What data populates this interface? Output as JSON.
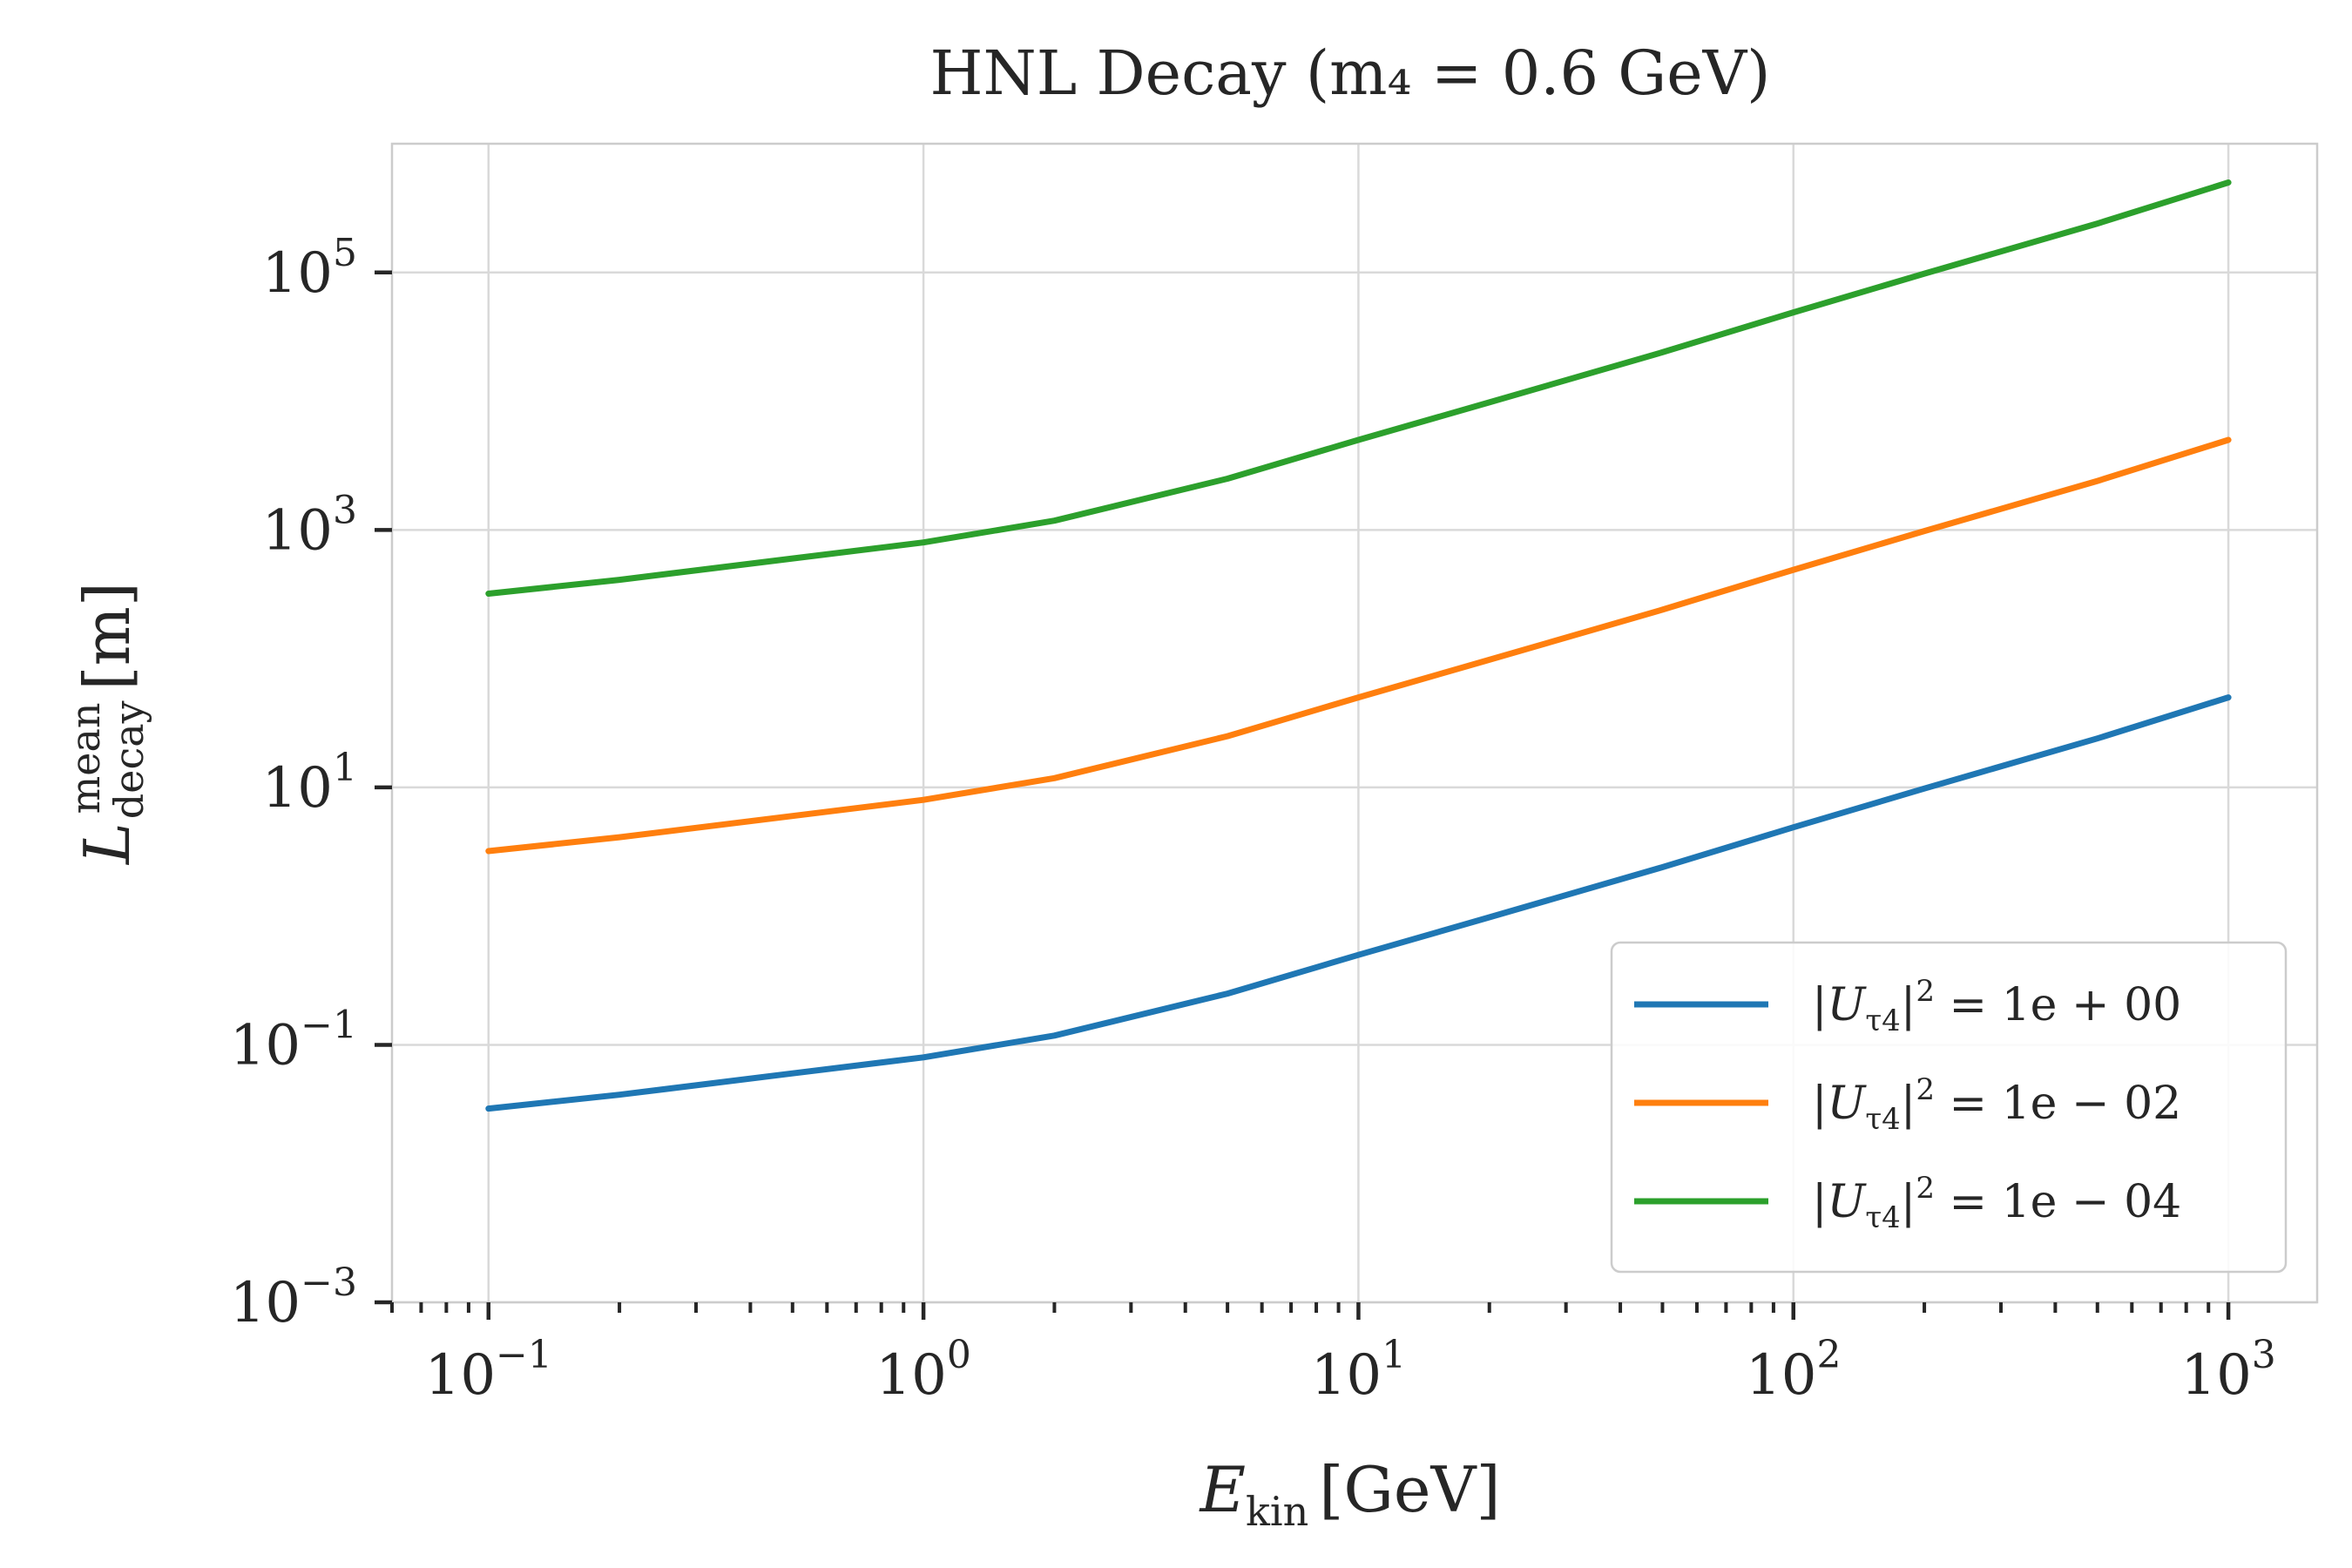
{
  "chart_data": {
    "type": "line",
    "title": "HNL Decay (m₄ = 0.6 GeV)",
    "xlabel": "E_kin [GeV]",
    "xlabel_parts": {
      "main": "E",
      "sub": "kin",
      "unit": "[GeV]"
    },
    "ylabel": "L_decay^mean [m]",
    "ylabel_parts": {
      "main": "L",
      "sub": "decay",
      "sup": "mean",
      "unit": "[m]"
    },
    "x_scale": "log",
    "y_scale": "log",
    "xlim": [
      0.06,
      1600
    ],
    "ylim": [
      0.001,
      1000000
    ],
    "xticks": [
      {
        "value": 0.1,
        "base": "10",
        "exp": "−1"
      },
      {
        "value": 1,
        "base": "10",
        "exp": "0"
      },
      {
        "value": 10,
        "base": "10",
        "exp": "1"
      },
      {
        "value": 100,
        "base": "10",
        "exp": "2"
      },
      {
        "value": 1000,
        "base": "10",
        "exp": "3"
      }
    ],
    "yticks": [
      {
        "value": 0.001,
        "base": "10",
        "exp": "−3"
      },
      {
        "value": 0.1,
        "base": "10",
        "exp": "−1"
      },
      {
        "value": 10,
        "base": "10",
        "exp": "1"
      },
      {
        "value": 1000,
        "base": "10",
        "exp": "3"
      },
      {
        "value": 100000,
        "base": "10",
        "exp": "5"
      }
    ],
    "grid": true,
    "legend_position": "lower-right",
    "x": [
      0.1,
      0.2,
      0.5,
      1,
      2,
      5,
      10,
      20,
      50,
      100,
      200,
      500,
      1000
    ],
    "series": [
      {
        "name": "|U_τ4|² = 1e+00",
        "label_parts": {
          "u": "|U",
          "sub": "τ4",
          "close": "|",
          "sup": "2",
          "rest": " = 1e + 00"
        },
        "color": "#1f77b4",
        "values": [
          0.032,
          0.041,
          0.06,
          0.08,
          0.118,
          0.25,
          0.5,
          0.98,
          2.4,
          4.9,
          9.8,
          24,
          50
        ]
      },
      {
        "name": "|U_τ4|² = 1e−02",
        "label_parts": {
          "u": "|U",
          "sub": "τ4",
          "close": "|",
          "sup": "2",
          "rest": " = 1e − 02"
        },
        "color": "#ff7f0e",
        "values": [
          3.2,
          4.1,
          6.0,
          8.0,
          11.8,
          25,
          50,
          98,
          240,
          490,
          980,
          2400,
          5000
        ]
      },
      {
        "name": "|U_τ4|² = 1e−04",
        "label_parts": {
          "u": "|U",
          "sub": "τ4",
          "close": "|",
          "sup": "2",
          "rest": " = 1e − 04"
        },
        "color": "#2ca02c",
        "values": [
          320,
          410,
          600,
          800,
          1180,
          2500,
          5000,
          9800,
          24000,
          49000,
          98000,
          240000,
          500000
        ]
      }
    ]
  }
}
